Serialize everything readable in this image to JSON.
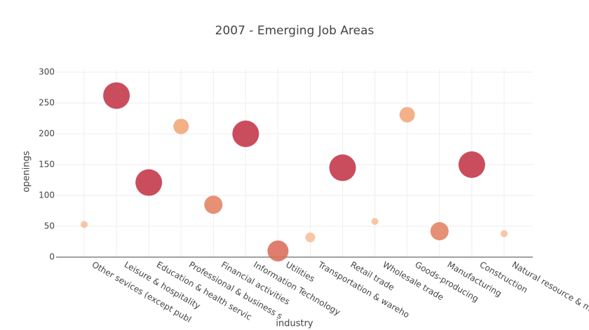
{
  "chart_data": {
    "type": "bubble",
    "title": "2007 - Emerging Job Areas",
    "x_label": "industry",
    "y_label": "openings",
    "categories": [
      "Other sevices (except publ",
      "Leisure & hospitality",
      "Education & health servic",
      "Professional & business s",
      "Financial activities",
      "Information Technology",
      "Utilities",
      "Transportation & wareho",
      "Retail trade",
      "Wholesale trade",
      "Goods-producing",
      "Manufacturing",
      "Construction",
      "Natural resource & mini"
    ],
    "values": [
      53,
      262,
      121,
      212,
      85,
      200,
      10,
      32,
      145,
      58,
      231,
      42,
      150,
      38
    ],
    "sizes": [
      10,
      38,
      38,
      22,
      26,
      38,
      30,
      14,
      38,
      10,
      22,
      26,
      38,
      10
    ],
    "colors": [
      "#f7c09a",
      "#c43a4c",
      "#c43a4c",
      "#f3a77a",
      "#e38466",
      "#c43a4c",
      "#db705e",
      "#f7c09a",
      "#c43a4c",
      "#f7c09a",
      "#f3a77a",
      "#e38466",
      "#c43a4c",
      "#f7c09a"
    ],
    "ylim": [
      -10,
      300
    ],
    "yticks": [
      0,
      50,
      100,
      150,
      200,
      250,
      300
    ],
    "grid": true
  }
}
